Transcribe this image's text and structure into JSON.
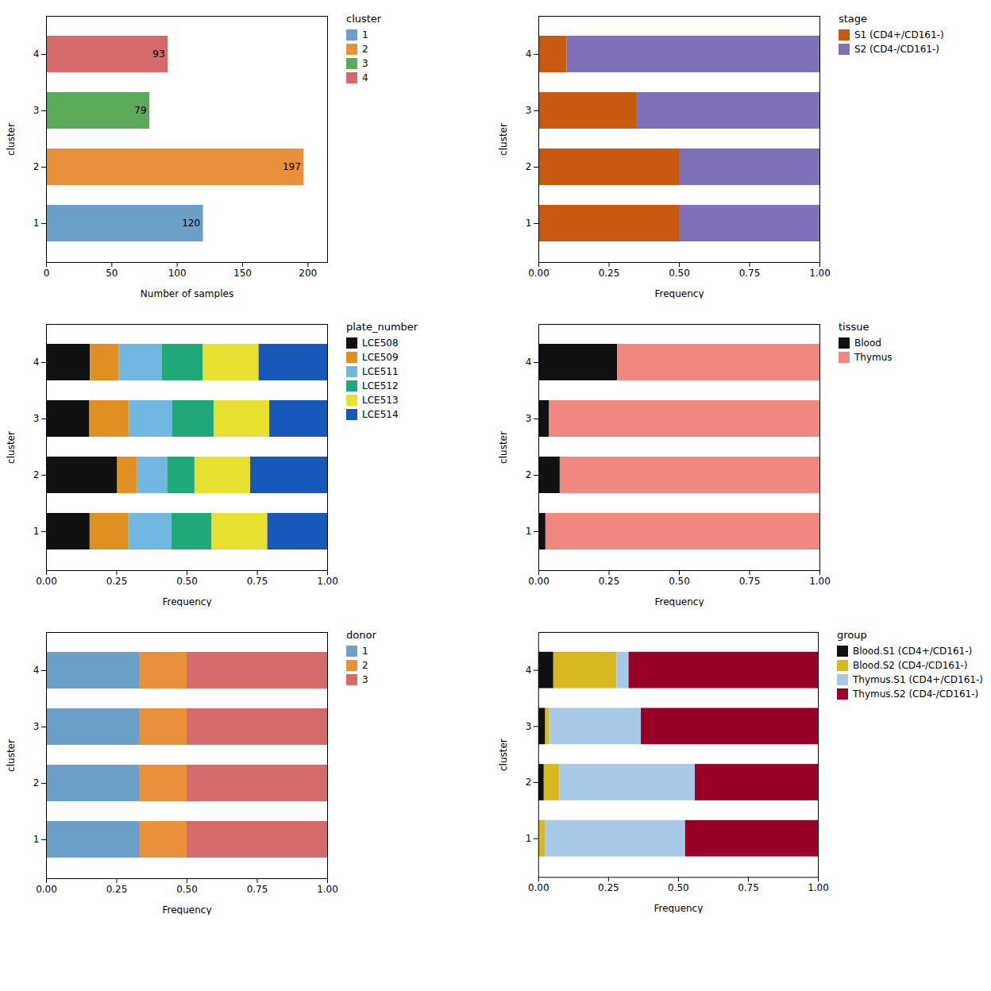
{
  "chart_data": [
    {
      "type": "bar",
      "orientation": "horizontal",
      "x_label": "Number of samples",
      "y_label": "cluster",
      "categories": [
        "1",
        "2",
        "3",
        "4"
      ],
      "values": [
        120,
        197,
        79,
        93
      ],
      "colors": [
        "#6ca0c8",
        "#e8913a",
        "#5aaa5a",
        "#d46a6a"
      ],
      "data_labels": true,
      "xlim": [
        0,
        215
      ],
      "xticks": [
        0,
        50,
        100,
        150,
        200
      ],
      "legend": "right",
      "legend_title": "cluster"
    },
    {
      "type": "bar",
      "orientation": "horizontal",
      "stacked": true,
      "x_label": "Frequency",
      "y_label": "cluster",
      "categories": [
        "1",
        "2",
        "3",
        "4"
      ],
      "series": [
        {
          "name": "S1 (CD4+/CD161-)",
          "color": "#c85a10",
          "values": [
            0.5,
            0.5,
            0.35,
            0.1
          ]
        },
        {
          "name": "S2 (CD4-/CD161-)",
          "color": "#8070b8",
          "values": [
            0.5,
            0.5,
            0.65,
            0.9
          ]
        }
      ],
      "xlim": [
        0,
        1.0
      ],
      "xticks": [
        {
          "value": 0,
          "label": "0.00"
        },
        {
          "value": 0.25,
          "label": "0.25"
        },
        {
          "value": 0.5,
          "label": "0.50"
        },
        {
          "value": 0.75,
          "label": "0.75"
        },
        {
          "value": 1.0,
          "label": "1.00"
        }
      ],
      "legend": "right",
      "legend_title": "stage"
    },
    {
      "type": "bar",
      "orientation": "horizontal",
      "stacked": true,
      "x_label": "Frequency",
      "y_label": "cluster",
      "categories": [
        "1",
        "2",
        "3",
        "4"
      ],
      "series": [
        {
          "name": "LCE508",
          "color": "#111111",
          "values": [
            0.155,
            0.253,
            0.154,
            0.156
          ]
        },
        {
          "name": "LCE509",
          "color": "#e09020",
          "values": [
            0.138,
            0.071,
            0.141,
            0.102
          ]
        },
        {
          "name": "LCE511",
          "color": "#70b8e0",
          "values": [
            0.153,
            0.107,
            0.154,
            0.153
          ]
        },
        {
          "name": "LCE512",
          "color": "#20a878",
          "values": [
            0.143,
            0.097,
            0.147,
            0.147
          ]
        },
        {
          "name": "LCE513",
          "color": "#e8e030",
          "values": [
            0.198,
            0.198,
            0.198,
            0.198
          ]
        },
        {
          "name": "LCE514",
          "color": "#1858b8",
          "values": [
            0.213,
            0.274,
            0.206,
            0.244
          ]
        }
      ],
      "xlim": [
        0,
        1.0
      ],
      "xticks": [
        {
          "value": 0,
          "label": "0.00"
        },
        {
          "value": 0.25,
          "label": "0.25"
        },
        {
          "value": 0.5,
          "label": "0.50"
        },
        {
          "value": 0.75,
          "label": "0.75"
        },
        {
          "value": 1.0,
          "label": "1.00"
        }
      ],
      "legend": "right",
      "legend_title": "plate_number"
    },
    {
      "type": "bar",
      "orientation": "horizontal",
      "stacked": true,
      "x_label": "Frequency",
      "y_label": "cluster",
      "categories": [
        "1",
        "2",
        "3",
        "4"
      ],
      "series": [
        {
          "name": "Blood",
          "color": "#111111",
          "values": [
            0.025,
            0.076,
            0.038,
            0.28
          ]
        },
        {
          "name": "Thymus",
          "color": "#f08880",
          "values": [
            0.975,
            0.924,
            0.962,
            0.72
          ]
        }
      ],
      "xlim": [
        0,
        1.0
      ],
      "xticks": [
        {
          "value": 0,
          "label": "0.00"
        },
        {
          "value": 0.25,
          "label": "0.25"
        },
        {
          "value": 0.5,
          "label": "0.50"
        },
        {
          "value": 0.75,
          "label": "0.75"
        },
        {
          "value": 1.0,
          "label": "1.00"
        }
      ],
      "legend": "right",
      "legend_title": "tissue"
    },
    {
      "type": "bar",
      "orientation": "horizontal",
      "stacked": true,
      "x_label": "Frequency",
      "y_label": "cluster",
      "categories": [
        "1",
        "2",
        "3",
        "4"
      ],
      "series": [
        {
          "name": "1",
          "color": "#6ca0c8",
          "values": [
            0.333,
            0.333,
            0.333,
            0.333
          ]
        },
        {
          "name": "2",
          "color": "#e8913a",
          "values": [
            0.167,
            0.167,
            0.167,
            0.167
          ]
        },
        {
          "name": "3",
          "color": "#d46a6a",
          "values": [
            0.5,
            0.5,
            0.5,
            0.5
          ]
        }
      ],
      "xlim": [
        0,
        1.0
      ],
      "xticks": [
        {
          "value": 0,
          "label": "0.00"
        },
        {
          "value": 0.25,
          "label": "0.25"
        },
        {
          "value": 0.5,
          "label": "0.50"
        },
        {
          "value": 0.75,
          "label": "0.75"
        },
        {
          "value": 1.0,
          "label": "1.00"
        }
      ],
      "legend": "right",
      "legend_title": "donor"
    },
    {
      "type": "bar",
      "orientation": "horizontal",
      "stacked": true,
      "x_label": "Frequency",
      "y_label": "cluster",
      "categories": [
        "1",
        "2",
        "3",
        "4"
      ],
      "series": [
        {
          "name": "Blood.S1 (CD4+/CD161-)",
          "color": "#111111",
          "values": [
            0.0,
            0.02,
            0.025,
            0.054
          ]
        },
        {
          "name": "Blood.S2 (CD4-/CD161-)",
          "color": "#d8b820",
          "values": [
            0.025,
            0.056,
            0.013,
            0.226
          ]
        },
        {
          "name": "Thymus.S1 (CD4+/CD161-)",
          "color": "#a8c8e8",
          "values": [
            0.5,
            0.484,
            0.329,
            0.043
          ]
        },
        {
          "name": "Thymus.S2 (CD4-/CD161-)",
          "color": "#980028",
          "values": [
            0.475,
            0.44,
            0.633,
            0.677
          ]
        }
      ],
      "xlim": [
        0,
        1.0
      ],
      "xticks": [
        {
          "value": 0,
          "label": "0.00"
        },
        {
          "value": 0.25,
          "label": "0.25"
        },
        {
          "value": 0.5,
          "label": "0.50"
        },
        {
          "value": 0.75,
          "label": "0.75"
        },
        {
          "value": 1.0,
          "label": "1.00"
        }
      ],
      "legend": "right",
      "legend_title": "group"
    }
  ]
}
